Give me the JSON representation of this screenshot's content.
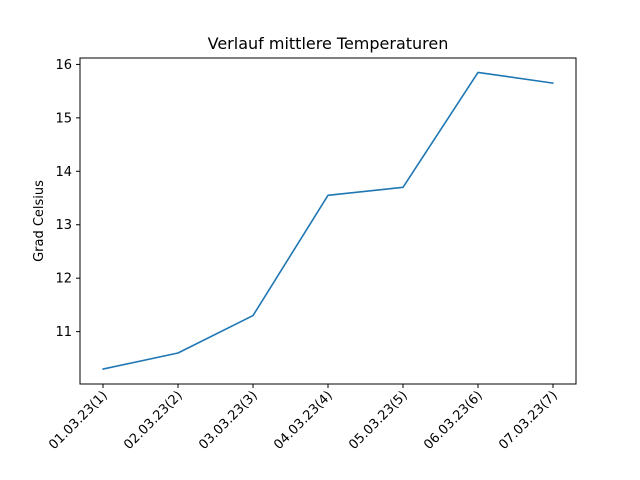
{
  "chart_data": {
    "type": "line",
    "title": "Verlauf mittlere Temperaturen",
    "xlabel": "",
    "ylabel": "Grad Celsius",
    "categories": [
      "01.03.23(1)",
      "02.03.23(2)",
      "03.03.23(3)",
      "04.03.23(4)",
      "05.03.23(5)",
      "06.03.23(6)",
      "07.03.23(7)"
    ],
    "series": [
      {
        "values": [
          10.3,
          10.6,
          11.3,
          13.55,
          13.7,
          15.85,
          15.65
        ],
        "color": "#1f77b4"
      }
    ],
    "yticks": [
      11,
      12,
      13,
      14,
      15,
      16
    ],
    "ylim": [
      10.02,
      16.12
    ],
    "grid": false,
    "legend": "none"
  }
}
